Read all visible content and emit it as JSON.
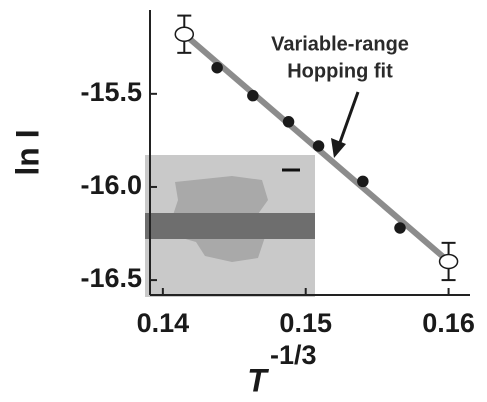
{
  "chart_data": {
    "type": "scatter",
    "y_label": "ln I",
    "x_label": "T",
    "x_label_superscript": "-1/3",
    "annotation": [
      "Variable-range",
      "Hopping fit"
    ],
    "series": [
      {
        "marker": "open",
        "color": "#1a1a1a",
        "x": [
          0.1415,
          0.16
        ],
        "values": [
          -15.18,
          -16.4
        ],
        "errors": [
          0.1,
          0.1
        ]
      },
      {
        "marker": "filled",
        "color": "#1a1a1a",
        "x": [
          0.1438,
          0.1463,
          0.1488,
          0.1509,
          0.154,
          0.1566
        ],
        "values": [
          -15.36,
          -15.51,
          -15.65,
          -15.78,
          -15.97,
          -16.22
        ]
      }
    ],
    "fit": {
      "color": "#8c8c8c",
      "x": [
        0.1415,
        0.16
      ],
      "values": [
        -15.18,
        -16.4
      ]
    },
    "xlim": [
      0.1391,
      0.1615
    ],
    "ylim": [
      -16.58,
      -15.05
    ],
    "xticks": [
      0.14,
      0.15,
      0.16
    ],
    "yticks": [
      -15.5,
      {
        "value": -16,
        "label": "-16.0"
      },
      -16.5
    ]
  }
}
